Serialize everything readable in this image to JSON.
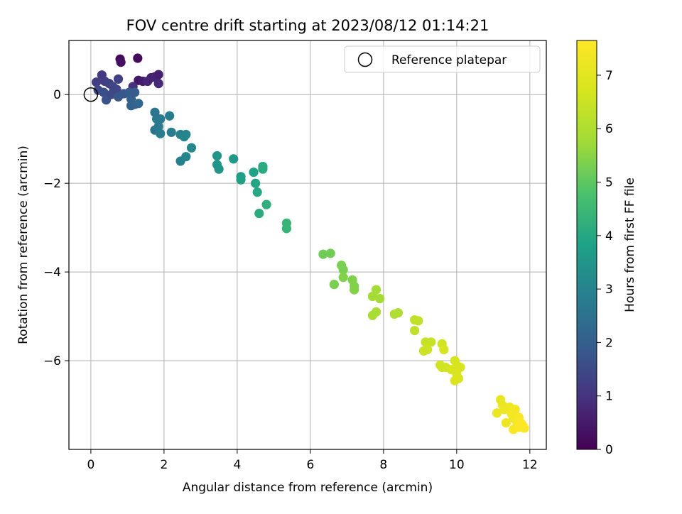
{
  "chart_data": {
    "type": "scatter",
    "title": "FOV centre drift starting at 2023/08/12 01:14:21",
    "xlabel": "Angular distance from reference (arcmin)",
    "ylabel": "Rotation from reference (arcmin)",
    "xlim": [
      -0.6,
      12.45
    ],
    "ylim": [
      -8.0,
      1.22
    ],
    "x_ticks": [
      0,
      2,
      4,
      6,
      8,
      10,
      12
    ],
    "x_tick_labels": [
      "0",
      "2",
      "4",
      "6",
      "8",
      "10",
      "12"
    ],
    "y_ticks": [
      0,
      -2,
      -4,
      -6
    ],
    "y_tick_labels": [
      "0",
      "−2",
      "−4",
      "−6"
    ],
    "grid": true,
    "legend": {
      "position": "top-right",
      "entries": [
        {
          "label": "Reference platepar",
          "marker": "open-circle",
          "color": "#000000"
        }
      ]
    },
    "reference_point": {
      "x": 0,
      "y": 0
    },
    "colorbar": {
      "label": "Hours from first FF file",
      "colormap": "viridis",
      "range": [
        0,
        7.65
      ],
      "ticks": [
        0,
        1,
        2,
        3,
        4,
        5,
        6,
        7
      ],
      "tick_labels": [
        "0",
        "1",
        "2",
        "3",
        "4",
        "5",
        "6",
        "7"
      ]
    },
    "series": [
      {
        "color_by": "hours_from_first_ff_file",
        "points": [
          [
            0.8,
            0.8,
            0.2
          ],
          [
            0.82,
            0.73,
            0.3
          ],
          [
            1.28,
            0.82,
            0.2
          ],
          [
            1.3,
            0.32,
            0.4
          ],
          [
            1.42,
            0.3,
            0.5
          ],
          [
            1.65,
            0.38,
            0.6
          ],
          [
            1.75,
            0.4,
            0.7
          ],
          [
            1.85,
            0.45,
            0.6
          ],
          [
            1.85,
            0.25,
            0.8
          ],
          [
            1.55,
            0.3,
            0.7
          ],
          [
            1.15,
            0.18,
            0.9
          ],
          [
            0.3,
            0.44,
            1.1
          ],
          [
            0.38,
            0.3,
            1.2
          ],
          [
            0.5,
            0.25,
            1.3
          ],
          [
            0.6,
            0.18,
            1.4
          ],
          [
            0.15,
            0.28,
            1.2
          ],
          [
            0.2,
            0.1,
            1.5
          ],
          [
            0.35,
            0.05,
            1.6
          ],
          [
            0.42,
            -0.12,
            1.7
          ],
          [
            0.55,
            0.0,
            1.5
          ],
          [
            0.7,
            0.12,
            1.4
          ],
          [
            0.75,
            0.35,
            1.3
          ],
          [
            0.75,
            -0.05,
            1.8
          ],
          [
            0.9,
            0.02,
            1.8
          ],
          [
            1.05,
            0.05,
            1.9
          ],
          [
            1.1,
            -0.1,
            2.0
          ],
          [
            1.1,
            -0.25,
            2.1
          ],
          [
            1.2,
            -0.22,
            2.1
          ],
          [
            1.3,
            -0.2,
            2.2
          ],
          [
            1.2,
            0.05,
            1.9
          ],
          [
            1.75,
            -0.4,
            2.6
          ],
          [
            1.8,
            -0.55,
            2.7
          ],
          [
            1.9,
            -0.55,
            2.7
          ],
          [
            1.75,
            -0.8,
            2.6
          ],
          [
            1.85,
            -0.72,
            2.7
          ],
          [
            1.9,
            -0.88,
            2.8
          ],
          [
            2.15,
            -0.48,
            2.8
          ],
          [
            2.2,
            -0.85,
            2.8
          ],
          [
            2.45,
            -0.9,
            2.9
          ],
          [
            2.55,
            -0.95,
            3.0
          ],
          [
            2.6,
            -0.9,
            3.0
          ],
          [
            2.45,
            -1.5,
            2.9
          ],
          [
            2.6,
            -1.4,
            3.0
          ],
          [
            2.75,
            -1.2,
            3.1
          ],
          [
            3.45,
            -1.38,
            3.5
          ],
          [
            3.45,
            -1.58,
            3.5
          ],
          [
            3.5,
            -1.68,
            3.5
          ],
          [
            3.9,
            -1.45,
            3.6
          ],
          [
            4.1,
            -1.85,
            3.7
          ],
          [
            4.1,
            -1.92,
            3.8
          ],
          [
            4.45,
            -1.75,
            3.8
          ],
          [
            4.5,
            -2.0,
            3.9
          ],
          [
            4.55,
            -2.2,
            4.0
          ],
          [
            4.7,
            -1.62,
            4.1
          ],
          [
            4.7,
            -1.68,
            4.1
          ],
          [
            4.6,
            -2.68,
            4.1
          ],
          [
            4.8,
            -2.48,
            4.2
          ],
          [
            5.35,
            -2.9,
            4.4
          ],
          [
            5.35,
            -3.02,
            4.4
          ],
          [
            6.35,
            -3.6,
            5.2
          ],
          [
            6.55,
            -3.58,
            5.2
          ],
          [
            6.65,
            -4.28,
            5.3
          ],
          [
            6.85,
            -3.85,
            5.3
          ],
          [
            6.9,
            -3.95,
            5.3
          ],
          [
            6.9,
            -4.12,
            5.4
          ],
          [
            7.15,
            -4.18,
            5.4
          ],
          [
            7.2,
            -4.32,
            5.4
          ],
          [
            7.2,
            -4.4,
            5.4
          ],
          [
            7.7,
            -4.55,
            5.8
          ],
          [
            7.8,
            -4.4,
            5.8
          ],
          [
            7.9,
            -4.6,
            5.8
          ],
          [
            7.7,
            -4.98,
            5.9
          ],
          [
            7.8,
            -4.9,
            5.9
          ],
          [
            8.3,
            -4.95,
            6.0
          ],
          [
            8.4,
            -4.92,
            6.0
          ],
          [
            8.85,
            -5.08,
            6.3
          ],
          [
            8.95,
            -5.1,
            6.3
          ],
          [
            8.85,
            -5.32,
            6.3
          ],
          [
            9.15,
            -5.58,
            6.4
          ],
          [
            9.3,
            -5.58,
            6.4
          ],
          [
            9.2,
            -5.75,
            6.5
          ],
          [
            9.1,
            -5.78,
            6.5
          ],
          [
            9.55,
            -6.1,
            6.6
          ],
          [
            9.6,
            -6.15,
            6.6
          ],
          [
            9.7,
            -6.15,
            6.6
          ],
          [
            9.6,
            -5.62,
            6.6
          ],
          [
            9.65,
            -5.75,
            6.7
          ],
          [
            9.95,
            -6.0,
            6.7
          ],
          [
            10.0,
            -6.1,
            6.7
          ],
          [
            10.1,
            -6.15,
            6.7
          ],
          [
            9.85,
            -6.2,
            6.7
          ],
          [
            10.0,
            -6.3,
            6.8
          ],
          [
            9.95,
            -6.45,
            6.8
          ],
          [
            10.05,
            -6.4,
            6.8
          ],
          [
            11.2,
            -6.88,
            7.1
          ],
          [
            11.1,
            -7.18,
            7.2
          ],
          [
            11.25,
            -7.0,
            7.2
          ],
          [
            11.3,
            -7.1,
            7.3
          ],
          [
            11.35,
            -7.4,
            7.3
          ],
          [
            11.45,
            -7.05,
            7.3
          ],
          [
            11.5,
            -7.2,
            7.4
          ],
          [
            11.55,
            -7.3,
            7.4
          ],
          [
            11.55,
            -7.55,
            7.5
          ],
          [
            11.6,
            -7.1,
            7.4
          ],
          [
            11.65,
            -7.4,
            7.5
          ],
          [
            11.7,
            -7.5,
            7.6
          ],
          [
            11.7,
            -7.28,
            7.5
          ],
          [
            11.75,
            -7.4,
            7.6
          ],
          [
            11.8,
            -7.45,
            7.6
          ],
          [
            11.85,
            -7.52,
            7.6
          ]
        ]
      }
    ]
  }
}
